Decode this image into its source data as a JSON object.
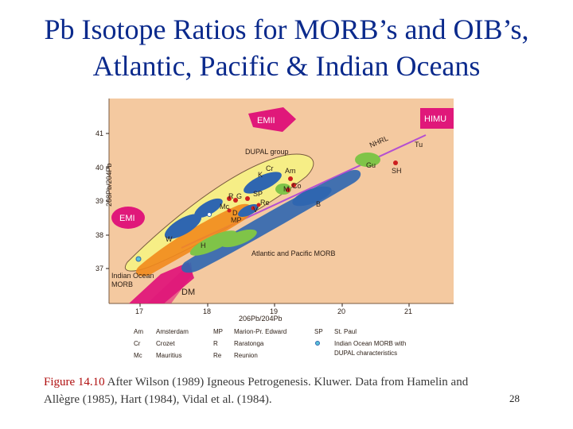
{
  "slide": {
    "title_line1": "Pb Isotope Ratios for MORB’s and OIB’s,",
    "title_line2": "Atlantic, Pacific & Indian Oceans",
    "caption_label": "Figure 14.10",
    "caption_text": "After Wilson (1989) Igneous Petrogenesis. Kluwer. Data from Hamelin and Allègre (1985), Hart (1984), Vidal et al. (1984).",
    "page_number": "28"
  },
  "diagram": {
    "x_axis_label": "206Pb/204Pb",
    "y_axis_label": "208Pb/204Pb",
    "x_ticks": [
      "17",
      "18",
      "19",
      "20",
      "21"
    ],
    "y_ticks": [
      "37",
      "38",
      "39",
      "40",
      "41"
    ],
    "field_labels": {
      "emii": "EMII",
      "himu": "HIMU",
      "emi": "EMI",
      "dm": "DM",
      "nhrl": "NHRL",
      "dupal": "DUPAL group",
      "atlantic_pacific": "Atlantic and Pacific MORB",
      "indian_morb_line1": "Indian Ocean",
      "indian_morb_line2": "MORB"
    },
    "island_codes": [
      "Tu",
      "Gu",
      "SH",
      "K",
      "Cr",
      "Am",
      "M",
      "Co",
      "R",
      "G",
      "SP",
      "D",
      "V",
      "Re",
      "MP",
      "Mc",
      "B",
      "W",
      "H"
    ],
    "legend": [
      {
        "code": "Am",
        "name": "Amsterdam"
      },
      {
        "code": "Cr",
        "name": "Crozet"
      },
      {
        "code": "Mc",
        "name": "Mauritius"
      },
      {
        "code": "MP",
        "name": "Marion-Pr. Edward"
      },
      {
        "code": "R",
        "name": "Raratonga"
      },
      {
        "code": "Re",
        "name": "Reunion"
      },
      {
        "code": "SP",
        "name": "St. Paul"
      }
    ],
    "legend_note_line1": "Indian Ocean MORB with",
    "legend_note_line2": "DUPAL characteristics",
    "colors": {
      "background": "#f4c9a0",
      "magenta": "#e0187a",
      "dupal_fill": "#f6ee86",
      "orange": "#f28a1c",
      "blue": "#2f66b0",
      "green": "#7fc448",
      "trend_line": "#b44fd1",
      "red_point": "#cc1f1f",
      "caption_label": "#b01010",
      "title": "#0b2a8c"
    }
  }
}
